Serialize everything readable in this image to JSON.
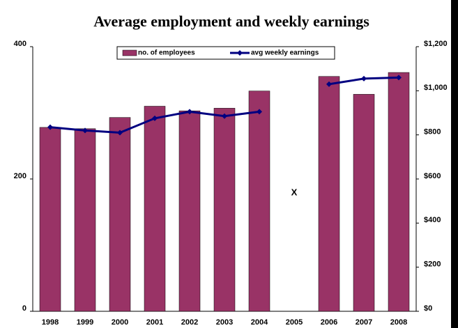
{
  "chart_data": {
    "type": "bar",
    "title": "Average employment and weekly earnings",
    "categories": [
      "1998",
      "1999",
      "2000",
      "2001",
      "2002",
      "2003",
      "2004",
      "2005",
      "2006",
      "2007",
      "2008"
    ],
    "series": [
      {
        "name": "no. of employees",
        "type": "bar",
        "color": "#993366",
        "values": [
          278,
          276,
          293,
          310,
          303,
          307,
          333,
          null,
          355,
          328,
          361
        ]
      },
      {
        "name": "avg weekly earnings",
        "type": "line",
        "color": "#000080",
        "axis": "y2",
        "values": [
          835,
          820,
          810,
          875,
          905,
          885,
          905,
          null,
          1030,
          1055,
          1060
        ]
      }
    ],
    "annotation": "X",
    "ylim": [
      0,
      400
    ],
    "yticks": [
      0,
      200,
      400
    ],
    "y2lim": [
      0,
      1200
    ],
    "y2ticks": [
      {
        "value": 0,
        "label": "$0"
      },
      {
        "value": 200,
        "label": "$200"
      },
      {
        "value": 400,
        "label": "$400"
      },
      {
        "value": 600,
        "label": "$600"
      },
      {
        "value": 800,
        "label": "$800"
      },
      {
        "value": 1000,
        "label": "$1,000"
      },
      {
        "value": 1200,
        "label": "$1,200"
      }
    ],
    "grid": false,
    "legend": "top"
  }
}
